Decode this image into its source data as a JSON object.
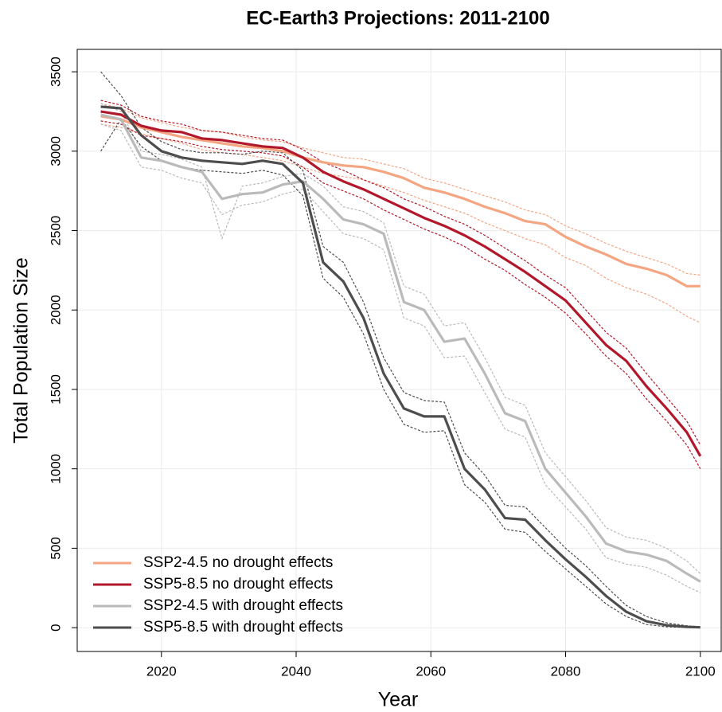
{
  "chart_data": {
    "type": "line",
    "title": "EC-Earth3 Projections: 2011-2100",
    "x_label": "Year",
    "y_label": "Total Population Size",
    "x": [
      2011,
      2014,
      2017,
      2020,
      2023,
      2026,
      2029,
      2032,
      2035,
      2038,
      2041,
      2044,
      2047,
      2050,
      2053,
      2056,
      2059,
      2062,
      2065,
      2068,
      2071,
      2074,
      2077,
      2080,
      2083,
      2086,
      2089,
      2092,
      2095,
      2098,
      2100
    ],
    "series": [
      {
        "name": "SSP2-4.5 no drought effects",
        "color": "#f4a582",
        "values": [
          3220,
          3200,
          3150,
          3120,
          3090,
          3070,
          3050,
          3030,
          3020,
          3000,
          2960,
          2930,
          2910,
          2900,
          2870,
          2830,
          2770,
          2740,
          2700,
          2650,
          2610,
          2560,
          2540,
          2460,
          2400,
          2350,
          2290,
          2260,
          2220,
          2150,
          2150
        ]
      },
      {
        "name": "SSP5-8.5 no drought effects",
        "color": "#b2182b",
        "values": [
          3250,
          3230,
          3160,
          3130,
          3120,
          3080,
          3070,
          3050,
          3030,
          3020,
          2960,
          2870,
          2810,
          2760,
          2700,
          2640,
          2580,
          2530,
          2470,
          2400,
          2320,
          2240,
          2150,
          2060,
          1920,
          1780,
          1680,
          1520,
          1380,
          1230,
          1080
        ]
      },
      {
        "name": "SSP2-4.5 with drought effects",
        "color": "#bababa",
        "values": [
          3230,
          3200,
          2960,
          2940,
          2900,
          2870,
          2700,
          2730,
          2740,
          2790,
          2810,
          2700,
          2570,
          2540,
          2480,
          2050,
          2000,
          1800,
          1820,
          1600,
          1350,
          1300,
          1000,
          850,
          700,
          530,
          480,
          460,
          420,
          340,
          290
        ]
      },
      {
        "name": "SSP5-8.5 with drought effects",
        "color": "#4d4d4d",
        "values": [
          3280,
          3270,
          3100,
          3000,
          2960,
          2940,
          2930,
          2920,
          2940,
          2920,
          2800,
          2300,
          2180,
          1950,
          1600,
          1380,
          1330,
          1330,
          1000,
          870,
          690,
          680,
          550,
          430,
          320,
          200,
          100,
          40,
          15,
          5,
          2
        ]
      }
    ],
    "ensembles": [
      {
        "color": "#f4a582",
        "values": [
          3300,
          3270,
          3210,
          3180,
          3150,
          3130,
          3120,
          3090,
          3070,
          3060,
          3020,
          2990,
          2960,
          2950,
          2920,
          2890,
          2830,
          2800,
          2760,
          2720,
          2680,
          2630,
          2600,
          2530,
          2480,
          2420,
          2370,
          2330,
          2290,
          2230,
          2220
        ]
      },
      {
        "color": "#f4a582",
        "values": [
          3170,
          3150,
          3110,
          3080,
          3050,
          3010,
          2990,
          2980,
          2960,
          2940,
          2900,
          2860,
          2840,
          2820,
          2780,
          2740,
          2690,
          2650,
          2610,
          2550,
          2500,
          2450,
          2410,
          2330,
          2280,
          2200,
          2140,
          2100,
          2040,
          1960,
          1920
        ]
      },
      {
        "color": "#b2182b",
        "values": [
          3320,
          3290,
          3220,
          3190,
          3170,
          3130,
          3120,
          3100,
          3080,
          3070,
          3010,
          2930,
          2880,
          2820,
          2770,
          2700,
          2650,
          2590,
          2540,
          2470,
          2390,
          2310,
          2220,
          2140,
          2000,
          1860,
          1760,
          1600,
          1450,
          1300,
          1150
        ]
      },
      {
        "color": "#b2182b",
        "values": [
          3190,
          3170,
          3100,
          3080,
          3060,
          3030,
          3010,
          3000,
          2990,
          2970,
          2900,
          2800,
          2750,
          2700,
          2630,
          2570,
          2510,
          2460,
          2400,
          2320,
          2250,
          2160,
          2080,
          1980,
          1850,
          1710,
          1600,
          1440,
          1300,
          1150,
          1000
        ]
      },
      {
        "color": "#bababa",
        "values": [
          3300,
          3250,
          3000,
          2980,
          2950,
          2900,
          2450,
          2780,
          2800,
          2840,
          2860,
          2780,
          2650,
          2620,
          2550,
          2150,
          2100,
          1900,
          1920,
          1700,
          1450,
          1400,
          1100,
          950,
          800,
          630,
          570,
          550,
          500,
          420,
          340
        ]
      },
      {
        "color": "#bababa",
        "values": [
          3170,
          3130,
          2900,
          2880,
          2830,
          2800,
          2600,
          2660,
          2680,
          2730,
          2760,
          2620,
          2480,
          2450,
          2380,
          1950,
          1900,
          1700,
          1710,
          1480,
          1250,
          1200,
          900,
          760,
          620,
          440,
          400,
          380,
          330,
          260,
          220
        ]
      },
      {
        "color": "#4d4d4d",
        "values": [
          3500,
          3350,
          3150,
          3060,
          3010,
          2990,
          2990,
          2980,
          3000,
          2990,
          2880,
          2400,
          2300,
          2050,
          1700,
          1480,
          1430,
          1420,
          1100,
          960,
          770,
          760,
          630,
          500,
          390,
          260,
          140,
          70,
          30,
          12,
          5
        ]
      },
      {
        "color": "#4d4d4d",
        "values": [
          3000,
          3200,
          3030,
          2940,
          2900,
          2880,
          2870,
          2860,
          2880,
          2850,
          2720,
          2200,
          2080,
          1850,
          1500,
          1280,
          1230,
          1240,
          900,
          790,
          620,
          600,
          480,
          370,
          260,
          150,
          70,
          20,
          5,
          1,
          0
        ]
      }
    ],
    "xlim": [
      2007.5,
      2103.1
    ],
    "ylim": [
      -150,
      3641
    ],
    "xticks": [
      2020,
      2040,
      2060,
      2080,
      2100
    ],
    "yticks": [
      0,
      500,
      1000,
      1500,
      2000,
      2500,
      3000,
      3500
    ],
    "grid": true,
    "legend_position": "bottomleft"
  }
}
